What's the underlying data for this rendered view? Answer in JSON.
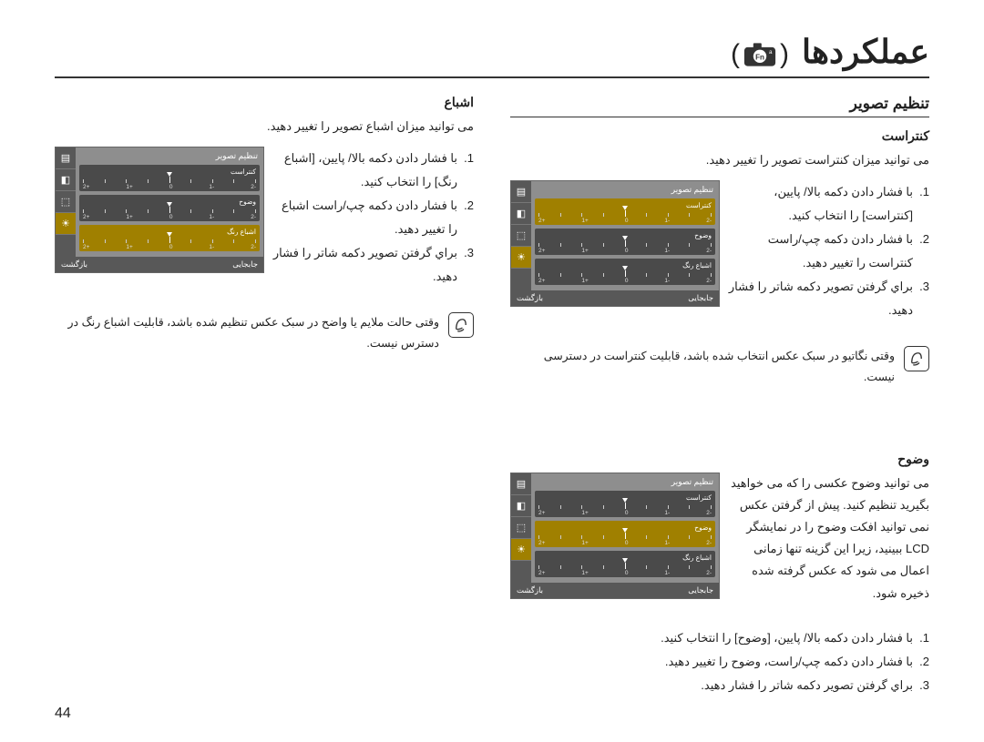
{
  "masthead": {
    "title": "عملکردها"
  },
  "right": {
    "section_title": "تنظیم تصویر",
    "contrast": {
      "title": "کنتراست",
      "desc": "می توانید میزان کنتراست تصویر را تغییر دهید.",
      "steps": [
        "با فشار دادن دکمه بالا/ پایین، [کنتراست] را انتخاب کنید.",
        "با فشار دادن دکمه چپ/راست کنتراست را تغییر دهید.",
        "براي گرفتن تصویر دکمه شاتر را فشار دهید."
      ],
      "note": "وقتی نگاتیو در سبک عکس انتخاب شده باشد، قابلیت کنتراست در دسترسی نیست."
    },
    "sharp": {
      "title": "وضوح",
      "desc": "می توانید وضوح عکسی را که می خواهید بگیرید تنظیم کنید. پیش از گرفتن عکس نمی توانید افکت وضوح را در نمایشگر LCD ببینید، زیرا این گزینه تنها زمانی اعمال می شود که عکس گرفته شده ذخیره شود.",
      "steps": [
        "با فشار دادن دکمه بالا/ پایین، [وضوح] را انتخاب کنید.",
        "با فشار دادن دکمه چپ/راست، وضوح را تغییر دهید.",
        "براي گرفتن تصویر دکمه شاتر را فشار دهید."
      ]
    }
  },
  "left": {
    "sat": {
      "title": "اشباع",
      "desc": "می توانید میزان اشباع تصویر را تغییر دهید.",
      "steps": [
        "با فشار دادن دکمه بالا/ پایین، [اشباع رنگ] را انتخاب کنید.",
        "با فشار دادن دکمه چپ/راست اشباع را تغییر دهید.",
        "براي گرفتن تصویر دکمه شاتر را فشار دهید."
      ],
      "note": "وقتی حالت ملایم یا واضح در سبک عکس تنظیم شده باشد، قابلیت اشباع رنگ در دسترس نیست."
    }
  },
  "panel": {
    "header": "تنظیم تصویر",
    "row_contrast": "کنتراست",
    "row_sharp": "وضوح",
    "row_sat": "اشباع رنگ",
    "foot_left": "جابجایی",
    "foot_right": "بازگشت",
    "ticks": [
      "-2",
      "-1",
      "0",
      "+1",
      "+2"
    ],
    "colors": {
      "bg": "#8e8e8e",
      "side": "#585858",
      "selected": "#a08000",
      "slider": "#4a4a4a",
      "foot": "#585858"
    }
  },
  "page": "44"
}
